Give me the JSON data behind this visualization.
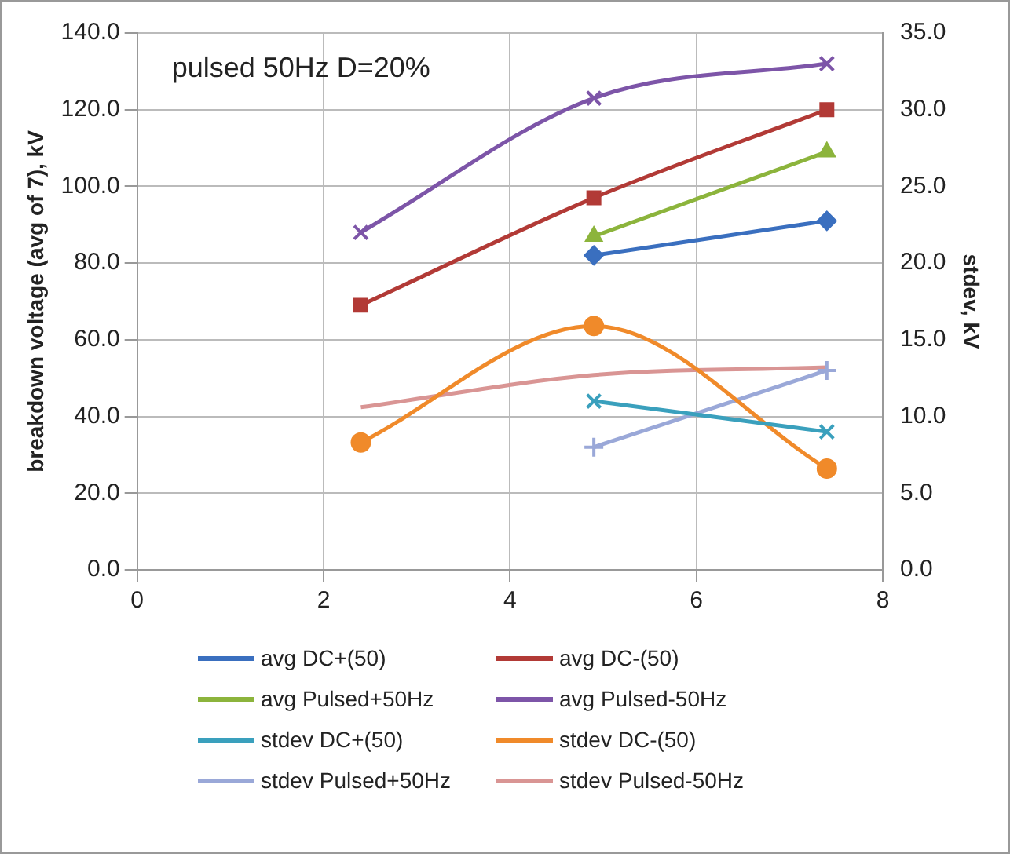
{
  "chart_data": {
    "type": "line",
    "xlabel": null,
    "ylabel": "breakdown voltage (avg of 7), kV",
    "y2label": "stdev, kV",
    "annotations": [
      "pulsed 50Hz D=20%"
    ],
    "xlim": [
      0,
      8
    ],
    "xticks": [
      0,
      2,
      4,
      6,
      8
    ],
    "ylim": [
      0,
      140
    ],
    "yticks": [
      {
        "value": 0,
        "label": "0.0"
      },
      {
        "value": 20,
        "label": "20.0"
      },
      {
        "value": 40,
        "label": "40.0"
      },
      {
        "value": 60,
        "label": "60.0"
      },
      {
        "value": 80,
        "label": "80.0"
      },
      {
        "value": 100,
        "label": "100.0"
      },
      {
        "value": 120,
        "label": "120.0"
      },
      {
        "value": 140,
        "label": "140.0"
      }
    ],
    "y2lim": [
      0,
      35
    ],
    "y2ticks": [
      {
        "value": 0,
        "label": "0.0"
      },
      {
        "value": 5,
        "label": "5.0"
      },
      {
        "value": 10,
        "label": "10.0"
      },
      {
        "value": 15,
        "label": "15.0"
      },
      {
        "value": 20,
        "label": "20.0"
      },
      {
        "value": 25,
        "label": "25.0"
      },
      {
        "value": 30,
        "label": "30.0"
      },
      {
        "value": 35,
        "label": "35.0"
      }
    ],
    "grid": true,
    "legend": "bottom",
    "series": [
      {
        "name": "avg DC+(50)",
        "color": "#3a6fbf",
        "marker": "diamond",
        "x": [
          4.9,
          7.4
        ],
        "values": [
          82,
          91
        ]
      },
      {
        "name": "avg DC-(50)",
        "color": "#b23a36",
        "marker": "square",
        "x": [
          2.4,
          4.9,
          7.4
        ],
        "values": [
          69,
          97,
          120
        ]
      },
      {
        "name": "avg Pulsed+50Hz",
        "color": "#8cb43c",
        "marker": "triangle",
        "x": [
          4.9,
          7.4
        ],
        "values": [
          87,
          109
        ]
      },
      {
        "name": "avg Pulsed-50Hz",
        "color": "#7d55a8",
        "marker": "cross",
        "x": [
          2.4,
          4.9,
          7.4
        ],
        "values": [
          88,
          123,
          132
        ]
      },
      {
        "name": "stdev DC+(50)",
        "color": "#3aa0bd",
        "marker": "cross",
        "axis": "y2",
        "x": [
          4.9,
          7.4
        ],
        "values": [
          11,
          9
        ]
      },
      {
        "name": "stdev DC-(50)",
        "color": "#f08a2a",
        "marker": "circle",
        "axis": "y2",
        "x": [
          2.4,
          4.9,
          7.4
        ],
        "values": [
          8.3,
          15.9,
          6.6
        ]
      },
      {
        "name": "stdev Pulsed+50Hz",
        "color": "#9aa8d8",
        "marker": "plus",
        "axis": "y2",
        "x": [
          4.9,
          7.4
        ],
        "values": [
          8,
          13
        ]
      },
      {
        "name": "stdev Pulsed-50Hz",
        "color": "#d99594",
        "marker": "none",
        "axis": "y2",
        "x": [
          2.4,
          4.9,
          7.4
        ],
        "values": [
          10.6,
          12.7,
          13.2
        ]
      }
    ]
  }
}
